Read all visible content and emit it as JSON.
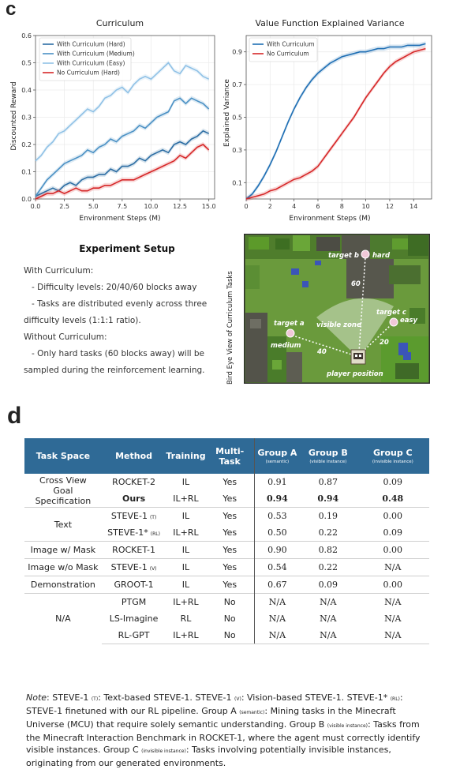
{
  "labels": {
    "c": "c",
    "d": "d"
  },
  "chart_data": [
    {
      "type": "line",
      "title": "Curriculum",
      "xlabel": "Environment Steps (M)",
      "ylabel": "Discounted Reward",
      "xlim": [
        0,
        15.5
      ],
      "ylim": [
        0,
        0.6
      ],
      "x_ticks": [
        "0.0",
        "2.5",
        "5.0",
        "7.5",
        "10.0",
        "12.5",
        "15.0"
      ],
      "y_ticks": [
        "0.0",
        "0.1",
        "0.2",
        "0.3",
        "0.4",
        "0.5",
        "0.6"
      ],
      "legend_position": "top-left",
      "x": [
        0,
        0.5,
        1,
        1.5,
        2,
        2.5,
        3,
        3.5,
        4,
        4.5,
        5,
        5.5,
        6,
        6.5,
        7,
        7.5,
        8,
        8.5,
        9,
        9.5,
        10,
        10.5,
        11,
        11.5,
        12,
        12.5,
        13,
        13.5,
        14,
        14.5,
        15
      ],
      "series": [
        {
          "name": "With Curriculum (Hard)",
          "color": "#2c6da3",
          "values": [
            0.01,
            0.02,
            0.03,
            0.04,
            0.03,
            0.05,
            0.06,
            0.05,
            0.07,
            0.08,
            0.08,
            0.09,
            0.09,
            0.11,
            0.1,
            0.12,
            0.12,
            0.13,
            0.15,
            0.14,
            0.16,
            0.17,
            0.18,
            0.17,
            0.2,
            0.21,
            0.2,
            0.22,
            0.23,
            0.25,
            0.24
          ]
        },
        {
          "name": "With Curriculum (Medium)",
          "color": "#4a90c4",
          "values": [
            0.01,
            0.04,
            0.07,
            0.09,
            0.11,
            0.13,
            0.14,
            0.15,
            0.16,
            0.18,
            0.17,
            0.19,
            0.2,
            0.22,
            0.21,
            0.23,
            0.24,
            0.25,
            0.27,
            0.26,
            0.28,
            0.3,
            0.31,
            0.32,
            0.36,
            0.37,
            0.35,
            0.37,
            0.36,
            0.35,
            0.33
          ]
        },
        {
          "name": "With Curriculum (Easy)",
          "color": "#8fc1e6",
          "values": [
            0.14,
            0.16,
            0.19,
            0.21,
            0.24,
            0.25,
            0.27,
            0.29,
            0.31,
            0.33,
            0.32,
            0.34,
            0.37,
            0.38,
            0.4,
            0.41,
            0.39,
            0.42,
            0.44,
            0.45,
            0.44,
            0.46,
            0.48,
            0.5,
            0.47,
            0.46,
            0.49,
            0.48,
            0.47,
            0.45,
            0.44
          ]
        },
        {
          "name": "No Curriculum (Hard)",
          "color": "#d62728",
          "values": [
            0.0,
            0.01,
            0.02,
            0.02,
            0.03,
            0.02,
            0.03,
            0.04,
            0.03,
            0.03,
            0.04,
            0.04,
            0.05,
            0.05,
            0.06,
            0.07,
            0.07,
            0.07,
            0.08,
            0.09,
            0.1,
            0.11,
            0.12,
            0.13,
            0.14,
            0.16,
            0.15,
            0.17,
            0.19,
            0.2,
            0.18
          ]
        }
      ]
    },
    {
      "type": "line",
      "title": "Value Function Explained Variance",
      "xlabel": "Environment Steps (M)",
      "ylabel": "Explained Variance",
      "xlim": [
        0,
        15.5
      ],
      "ylim": [
        0,
        1.0
      ],
      "x_ticks": [
        "0",
        "2",
        "4",
        "6",
        "8",
        "10",
        "12",
        "14"
      ],
      "y_ticks": [
        "0.1",
        "0.3",
        "0.5",
        "0.7",
        "0.9"
      ],
      "legend_position": "top-left",
      "x": [
        0,
        0.5,
        1,
        1.5,
        2,
        2.5,
        3,
        3.5,
        4,
        4.5,
        5,
        5.5,
        6,
        6.5,
        7,
        7.5,
        8,
        8.5,
        9,
        9.5,
        10,
        10.5,
        11,
        11.5,
        12,
        12.5,
        13,
        13.5,
        14,
        14.5,
        15
      ],
      "series": [
        {
          "name": "With Curriculum",
          "color": "#1f6fb4",
          "values": [
            0.0,
            0.03,
            0.08,
            0.14,
            0.21,
            0.29,
            0.38,
            0.47,
            0.55,
            0.62,
            0.68,
            0.73,
            0.77,
            0.8,
            0.83,
            0.85,
            0.87,
            0.88,
            0.89,
            0.9,
            0.9,
            0.91,
            0.92,
            0.92,
            0.93,
            0.93,
            0.93,
            0.94,
            0.94,
            0.94,
            0.95
          ]
        },
        {
          "name": "No Curriculum",
          "color": "#d62728",
          "values": [
            0.0,
            0.01,
            0.02,
            0.03,
            0.05,
            0.06,
            0.08,
            0.1,
            0.12,
            0.13,
            0.15,
            0.17,
            0.2,
            0.25,
            0.3,
            0.35,
            0.4,
            0.45,
            0.5,
            0.56,
            0.62,
            0.67,
            0.72,
            0.77,
            0.81,
            0.84,
            0.86,
            0.88,
            0.9,
            0.91,
            0.92
          ]
        }
      ]
    }
  ],
  "setup": {
    "title": "Experiment Setup",
    "lines": [
      "With Curriculum:",
      "- Difficulty levels: 20/40/60 blocks away",
      "- Tasks are distributed evenly across three",
      "difficulty levels (1:1:1 ratio).",
      "Without Curriculum:",
      "- Only hard tasks (60 blocks away) will be",
      "sampled during the reinforcement learning."
    ]
  },
  "map": {
    "caption": "Bird Eye View of Curriculum Tasks",
    "target_a": "target a",
    "medium": "medium",
    "target_b": "target b",
    "hard": "hard",
    "target_c": "target c",
    "easy": "easy",
    "visible_zone": "visible zone",
    "player_position": "player position",
    "dist_60": "60",
    "dist_40": "40",
    "dist_20": "20"
  },
  "table": {
    "headers": [
      "Task Space",
      "Method",
      "Training",
      "Multi-Task",
      "Group A",
      "Group B",
      "Group C"
    ],
    "header_subs": [
      "(semantic)",
      "(visible instance)",
      "(invisible instance)"
    ],
    "groups": [
      {
        "task_space": [
          "Cross View",
          "Goal Specification"
        ],
        "rows": [
          {
            "method": "ROCKET-2",
            "method_sub": "",
            "training": "IL",
            "multitask": "Yes",
            "a": "0.91",
            "b": "0.87",
            "c": "0.09",
            "bold": false
          },
          {
            "method": "Ours",
            "method_sub": "",
            "training": "IL+RL",
            "multitask": "Yes",
            "a": "0.94",
            "b": "0.94",
            "c": "0.48",
            "bold": true
          }
        ]
      },
      {
        "task_space": [
          "Text"
        ],
        "rows": [
          {
            "method": "STEVE-1",
            "method_sub": "(T)",
            "training": "IL",
            "multitask": "Yes",
            "a": "0.53",
            "b": "0.19",
            "c": "0.00",
            "bold": false
          },
          {
            "method": "STEVE-1*",
            "method_sub": "(RL)",
            "training": "IL+RL",
            "multitask": "Yes",
            "a": "0.50",
            "b": "0.22",
            "c": "0.09",
            "bold": false
          }
        ]
      },
      {
        "task_space": [
          "Image w/ Mask"
        ],
        "rows": [
          {
            "method": "ROCKET-1",
            "method_sub": "",
            "training": "IL",
            "multitask": "Yes",
            "a": "0.90",
            "b": "0.82",
            "c": "0.00",
            "bold": false
          }
        ]
      },
      {
        "task_space": [
          "Image w/o Mask"
        ],
        "rows": [
          {
            "method": "STEVE-1",
            "method_sub": "(V)",
            "training": "IL",
            "multitask": "Yes",
            "a": "0.54",
            "b": "0.22",
            "c": "N/A",
            "bold": false
          }
        ]
      },
      {
        "task_space": [
          "Demonstration"
        ],
        "rows": [
          {
            "method": "GROOT-1",
            "method_sub": "",
            "training": "IL",
            "multitask": "Yes",
            "a": "0.67",
            "b": "0.09",
            "c": "0.00",
            "bold": false
          }
        ]
      },
      {
        "task_space": [
          "N/A"
        ],
        "rows": [
          {
            "method": "PTGM",
            "method_sub": "",
            "training": "IL+RL",
            "multitask": "No",
            "a": "N/A",
            "b": "N/A",
            "c": "N/A",
            "bold": false
          },
          {
            "method": "LS-Imagine",
            "method_sub": "",
            "training": "RL",
            "multitask": "No",
            "a": "N/A",
            "b": "N/A",
            "c": "N/A",
            "bold": false
          },
          {
            "method": "RL-GPT",
            "method_sub": "",
            "training": "IL+RL",
            "multitask": "No",
            "a": "N/A",
            "b": "N/A",
            "c": "N/A",
            "bold": false
          }
        ]
      }
    ]
  },
  "note": {
    "p1": "Note",
    "p2": ": STEVE-1 ",
    "s1": "(T)",
    "p3": ": Text-based STEVE-1. STEVE-1 ",
    "s2": "(V)",
    "p4": ": Vision-based STEVE-1. STEVE-1* ",
    "s3": "(RL)",
    "p5": ": STEVE-1 finetuned with our RL pipeline. Group A ",
    "s4": "(semantic)",
    "p6": ": Mining tasks in the Minecraft Universe (MCU) that require solely semantic understanding. Group B ",
    "s5": "(visible instance)",
    "p7": ": Tasks from the Minecraft Interaction Benchmark in ROCKET-1, where the agent must correctly identify visible instances. Group C ",
    "s6": "(invisible instance)",
    "p8": ": Tasks involving potentially invisible instances, originating from our generated environments."
  }
}
